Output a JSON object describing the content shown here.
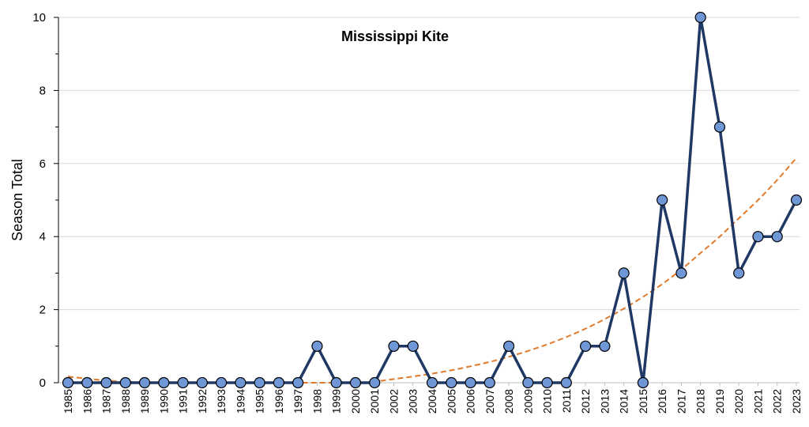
{
  "chart_data": {
    "type": "line",
    "title": "Mississippi Kite",
    "xlabel": "",
    "ylabel": "Season Total",
    "ylim": [
      0,
      10
    ],
    "yticks": [
      0,
      2,
      4,
      6,
      8,
      10
    ],
    "grid": true,
    "legend": "none",
    "categories": [
      "1985",
      "1986",
      "1987",
      "1988",
      "1989",
      "1990",
      "1991",
      "1992",
      "1993",
      "1994",
      "1995",
      "1996",
      "1997",
      "1998",
      "1999",
      "2000",
      "2001",
      "2002",
      "2003",
      "2004",
      "2005",
      "2006",
      "2007",
      "2008",
      "2009",
      "2010",
      "2011",
      "2012",
      "2013",
      "2014",
      "2015",
      "2016",
      "2017",
      "2018",
      "2019",
      "2020",
      "2021",
      "2022",
      "2023"
    ],
    "series": [
      {
        "values": [
          0,
          0,
          0,
          0,
          0,
          0,
          0,
          0,
          0,
          0,
          0,
          0,
          0,
          1,
          0,
          0,
          0,
          1,
          1,
          0,
          0,
          0,
          0,
          1,
          0,
          0,
          0,
          1,
          1,
          3,
          0,
          5,
          3,
          10,
          7,
          3,
          4,
          4,
          5
        ],
        "line_color": "#1f3864",
        "marker_color": "#6f97d6"
      }
    ],
    "trendline": {
      "type": "polynomial",
      "style": "dashed",
      "color": "#e07b2e",
      "values": [
        0.17,
        0.11,
        0.06,
        0.03,
        0.01,
        0.0,
        0.0,
        0.0,
        0.0,
        0.0,
        0.0,
        0.0,
        0.0,
        0.0,
        0.0,
        0.0,
        0.03,
        0.1,
        0.17,
        0.25,
        0.34,
        0.45,
        0.57,
        0.71,
        0.87,
        1.05,
        1.25,
        1.48,
        1.74,
        2.03,
        2.35,
        2.7,
        3.1,
        3.55,
        4.0,
        4.5,
        5.0,
        5.55,
        6.15
      ]
    }
  }
}
